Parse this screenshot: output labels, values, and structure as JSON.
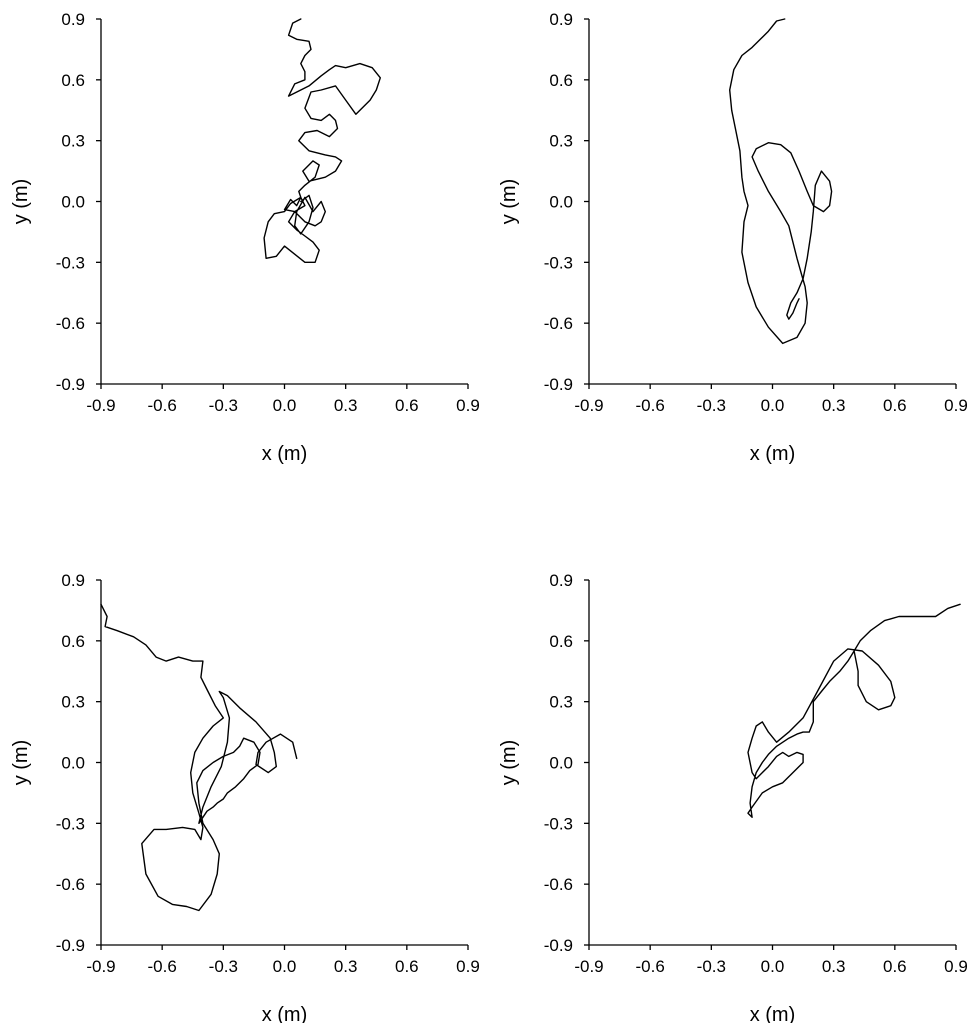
{
  "chart_data": [
    {
      "type": "line",
      "xlabel": "x (m)",
      "ylabel": "y (m)",
      "xlim": [
        -0.9,
        0.9
      ],
      "ylim": [
        -0.9,
        0.9
      ],
      "xticks": [
        "-0.9",
        "-0.6",
        "-0.3",
        "0.0",
        "0.3",
        "0.6",
        "0.9"
      ],
      "yticks": [
        "0.9",
        "0.6",
        "0.3",
        "0.0",
        "-0.3",
        "-0.6",
        "-0.9"
      ],
      "grid": false,
      "series": [
        {
          "x": [
            0.08,
            0.04,
            0.02,
            0.06,
            0.12,
            0.13,
            0.1,
            0.08,
            0.1,
            0.1,
            0.05,
            0.02,
            0.12,
            0.18,
            0.22,
            0.25,
            0.3,
            0.37,
            0.43,
            0.47,
            0.45,
            0.42,
            0.35,
            0.3,
            0.25,
            0.18,
            0.13,
            0.1,
            0.13,
            0.18,
            0.22,
            0.25,
            0.26,
            0.22,
            0.16,
            0.1,
            0.07,
            0.12,
            0.2,
            0.25,
            0.28,
            0.25,
            0.2,
            0.12,
            0.09,
            0.14,
            0.17,
            0.15,
            0.1,
            0.07,
            0.08,
            0.06,
            0.03,
            0.0,
            0.05,
            0.1,
            0.08,
            0.03,
            0.0,
            -0.05,
            -0.08,
            -0.1,
            -0.09,
            -0.04,
            0.0,
            0.05,
            0.1,
            0.15,
            0.17,
            0.14,
            0.1,
            0.06,
            0.02,
            0.05,
            0.1,
            0.15,
            0.18,
            0.2,
            0.18,
            0.14,
            0.1,
            0.06,
            0.05,
            0.08,
            0.12,
            0.14,
            0.12,
            0.08
          ],
          "y": [
            0.9,
            0.88,
            0.82,
            0.8,
            0.79,
            0.75,
            0.72,
            0.68,
            0.64,
            0.6,
            0.58,
            0.52,
            0.57,
            0.62,
            0.65,
            0.67,
            0.66,
            0.68,
            0.66,
            0.61,
            0.55,
            0.5,
            0.43,
            0.5,
            0.57,
            0.55,
            0.54,
            0.46,
            0.41,
            0.4,
            0.43,
            0.4,
            0.36,
            0.32,
            0.35,
            0.34,
            0.3,
            0.25,
            0.23,
            0.22,
            0.2,
            0.15,
            0.12,
            0.1,
            0.15,
            0.2,
            0.18,
            0.12,
            0.08,
            0.05,
            0.02,
            -0.02,
            0.01,
            -0.04,
            -0.05,
            -0.02,
            0.02,
            -0.01,
            -0.05,
            -0.06,
            -0.1,
            -0.18,
            -0.28,
            -0.27,
            -0.22,
            -0.26,
            -0.3,
            -0.3,
            -0.24,
            -0.2,
            -0.17,
            -0.14,
            -0.1,
            -0.05,
            -0.1,
            -0.12,
            -0.1,
            -0.05,
            0.0,
            -0.05,
            0.02,
            -0.05,
            -0.12,
            -0.16,
            -0.1,
            -0.03,
            0.03,
            0.0
          ]
        }
      ]
    },
    {
      "type": "line",
      "xlabel": "x (m)",
      "ylabel": "y (m)",
      "xlim": [
        -0.9,
        0.9
      ],
      "ylim": [
        -0.9,
        0.9
      ],
      "xticks": [
        "-0.9",
        "-0.6",
        "-0.3",
        "0.0",
        "0.3",
        "0.6",
        "0.9"
      ],
      "yticks": [
        "0.9",
        "0.6",
        "0.3",
        "0.0",
        "-0.3",
        "-0.6",
        "-0.9"
      ],
      "grid": false,
      "series": [
        {
          "x": [
            0.06,
            0.02,
            -0.02,
            -0.06,
            -0.1,
            -0.15,
            -0.19,
            -0.21,
            -0.2,
            -0.18,
            -0.16,
            -0.15,
            -0.14,
            -0.12,
            -0.14,
            -0.15,
            -0.12,
            -0.08,
            -0.02,
            0.05,
            0.12,
            0.16,
            0.17,
            0.16,
            0.14,
            0.12,
            0.1,
            0.08,
            0.04,
            -0.02,
            -0.07,
            -0.1,
            -0.08,
            -0.02,
            0.04,
            0.09,
            0.13,
            0.17,
            0.2,
            0.25,
            0.28,
            0.29,
            0.28,
            0.24,
            0.21,
            0.2,
            0.19,
            0.17,
            0.15,
            0.12,
            0.09,
            0.07,
            0.08,
            0.1,
            0.12,
            0.13
          ],
          "y": [
            0.9,
            0.89,
            0.84,
            0.8,
            0.76,
            0.72,
            0.65,
            0.55,
            0.45,
            0.35,
            0.25,
            0.12,
            0.05,
            -0.02,
            -0.1,
            -0.25,
            -0.4,
            -0.52,
            -0.62,
            -0.7,
            -0.67,
            -0.6,
            -0.5,
            -0.42,
            -0.35,
            -0.28,
            -0.2,
            -0.12,
            -0.05,
            0.05,
            0.15,
            0.22,
            0.26,
            0.29,
            0.28,
            0.24,
            0.15,
            0.05,
            -0.02,
            -0.05,
            -0.02,
            0.05,
            0.1,
            0.15,
            0.08,
            -0.05,
            -0.15,
            -0.28,
            -0.38,
            -0.45,
            -0.5,
            -0.56,
            -0.58,
            -0.55,
            -0.5,
            -0.48
          ]
        }
      ]
    },
    {
      "type": "line",
      "xlabel": "x (m)",
      "ylabel": "y (m)",
      "xlim": [
        -0.9,
        0.9
      ],
      "ylim": [
        -0.9,
        0.9
      ],
      "xticks": [
        "-0.9",
        "-0.6",
        "-0.3",
        "0.0",
        "0.3",
        "0.6",
        "0.9"
      ],
      "yticks": [
        "0.9",
        "0.6",
        "0.3",
        "0.0",
        "-0.3",
        "-0.6",
        "-0.9"
      ],
      "grid": false,
      "series": [
        {
          "x": [
            -0.9,
            -0.87,
            -0.88,
            -0.82,
            -0.74,
            -0.68,
            -0.63,
            -0.58,
            -0.52,
            -0.45,
            -0.4,
            -0.41,
            -0.38,
            -0.34,
            -0.3,
            -0.35,
            -0.4,
            -0.44,
            -0.46,
            -0.45,
            -0.42,
            -0.4,
            -0.41,
            -0.44,
            -0.5,
            -0.58,
            -0.64,
            -0.7,
            -0.68,
            -0.62,
            -0.55,
            -0.48,
            -0.42,
            -0.36,
            -0.33,
            -0.32,
            -0.35,
            -0.4,
            -0.42,
            -0.43,
            -0.4,
            -0.35,
            -0.3,
            -0.25,
            -0.22,
            -0.2,
            -0.15,
            -0.12,
            -0.13,
            -0.17,
            -0.2,
            -0.24,
            -0.28,
            -0.3,
            -0.33,
            -0.35,
            -0.38,
            -0.42,
            -0.4,
            -0.36,
            -0.31,
            -0.28,
            -0.27,
            -0.3,
            -0.32,
            -0.28,
            -0.22,
            -0.14,
            -0.07,
            -0.05,
            -0.04,
            -0.08,
            -0.14,
            -0.13,
            -0.09,
            -0.02,
            0.04,
            0.06
          ],
          "y": [
            0.78,
            0.72,
            0.67,
            0.65,
            0.62,
            0.58,
            0.52,
            0.5,
            0.52,
            0.5,
            0.5,
            0.42,
            0.36,
            0.28,
            0.22,
            0.18,
            0.12,
            0.05,
            -0.05,
            -0.15,
            -0.25,
            -0.32,
            -0.38,
            -0.33,
            -0.32,
            -0.33,
            -0.33,
            -0.4,
            -0.55,
            -0.66,
            -0.7,
            -0.71,
            -0.73,
            -0.65,
            -0.55,
            -0.45,
            -0.38,
            -0.3,
            -0.2,
            -0.1,
            -0.04,
            0.0,
            0.03,
            0.05,
            0.08,
            0.12,
            0.1,
            0.05,
            -0.01,
            -0.04,
            -0.08,
            -0.12,
            -0.15,
            -0.18,
            -0.2,
            -0.22,
            -0.24,
            -0.3,
            -0.22,
            -0.12,
            -0.02,
            0.1,
            0.22,
            0.32,
            0.35,
            0.33,
            0.27,
            0.2,
            0.12,
            0.05,
            -0.02,
            -0.05,
            -0.01,
            0.05,
            0.1,
            0.14,
            0.1,
            0.02
          ]
        }
      ]
    },
    {
      "type": "line",
      "xlabel": "x (m)",
      "ylabel": "y (m)",
      "xlim": [
        -0.9,
        0.9
      ],
      "ylim": [
        -0.9,
        0.9
      ],
      "xticks": [
        "-0.9",
        "-0.6",
        "-0.3",
        "0.0",
        "0.3",
        "0.6",
        "0.9"
      ],
      "yticks": [
        "0.9",
        "0.6",
        "0.3",
        "0.0",
        "-0.3",
        "-0.6",
        "-0.9"
      ],
      "grid": false,
      "series": [
        {
          "x": [
            0.92,
            0.86,
            0.8,
            0.72,
            0.62,
            0.55,
            0.48,
            0.43,
            0.4,
            0.37,
            0.33,
            0.28,
            0.24,
            0.2,
            0.2,
            0.18,
            0.15,
            0.12,
            0.08,
            0.02,
            -0.02,
            -0.05,
            -0.08,
            -0.1,
            -0.11,
            -0.1,
            -0.12,
            -0.1,
            -0.05,
            0.0,
            0.05,
            0.1,
            0.15,
            0.15,
            0.12,
            0.08,
            0.05,
            0.02,
            -0.02,
            -0.05,
            -0.08,
            -0.1,
            -0.12,
            -0.1,
            -0.08,
            -0.05,
            -0.02,
            0.02,
            0.08,
            0.15,
            0.22,
            0.3,
            0.37,
            0.44,
            0.52,
            0.58,
            0.6,
            0.58,
            0.52,
            0.46,
            0.42,
            0.42,
            0.4
          ],
          "y": [
            0.78,
            0.76,
            0.72,
            0.72,
            0.72,
            0.7,
            0.65,
            0.6,
            0.55,
            0.5,
            0.45,
            0.4,
            0.35,
            0.3,
            0.2,
            0.15,
            0.15,
            0.14,
            0.12,
            0.08,
            0.04,
            0.0,
            -0.05,
            -0.12,
            -0.2,
            -0.27,
            -0.25,
            -0.22,
            -0.15,
            -0.12,
            -0.1,
            -0.05,
            0.0,
            0.04,
            0.05,
            0.03,
            0.05,
            0.03,
            -0.02,
            -0.05,
            -0.08,
            -0.05,
            0.05,
            0.12,
            0.18,
            0.2,
            0.15,
            0.1,
            0.15,
            0.22,
            0.35,
            0.5,
            0.56,
            0.55,
            0.48,
            0.4,
            0.32,
            0.28,
            0.26,
            0.3,
            0.38,
            0.45,
            0.55
          ]
        }
      ]
    }
  ]
}
